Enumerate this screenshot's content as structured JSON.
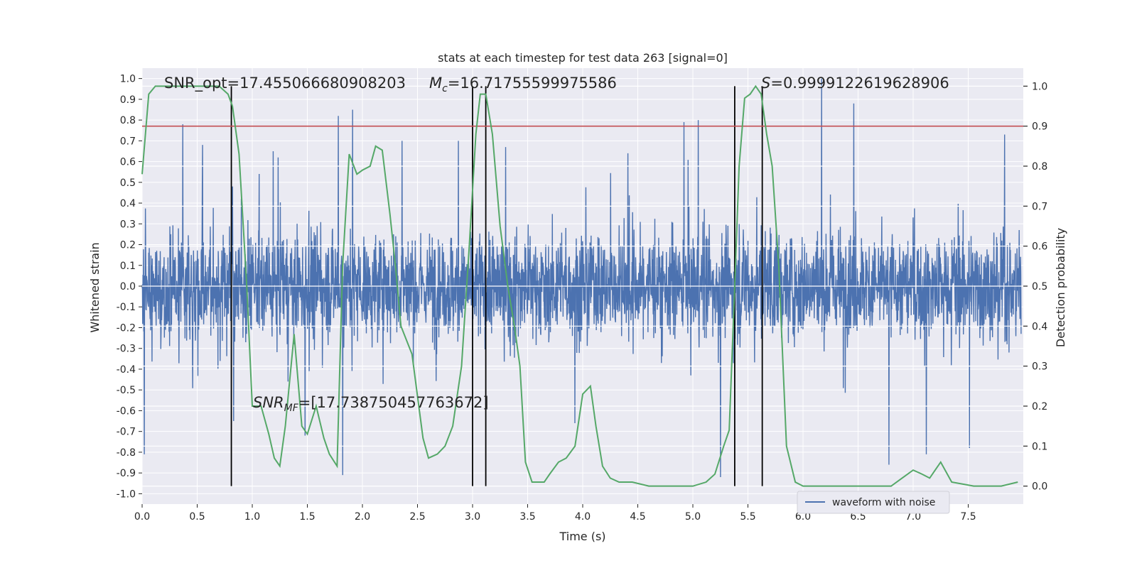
{
  "chart_data": {
    "type": "line",
    "title": "stats at each timestep for test data 263 [signal=0]",
    "xlabel": "Time (s)",
    "ylabel": "Whitened strain",
    "y2label": "Detection probability",
    "xlim": [
      0.0,
      8.0
    ],
    "ylim": [
      -1.05,
      1.05
    ],
    "y2lim": [
      -0.045,
      1.045
    ],
    "x_ticks": [
      "0.0",
      "0.5",
      "1.0",
      "1.5",
      "2.0",
      "2.5",
      "3.0",
      "3.5",
      "4.0",
      "4.5",
      "5.0",
      "5.5",
      "6.0",
      "6.5",
      "7.0",
      "7.5"
    ],
    "y_ticks": [
      "1.0",
      "0.9",
      "0.8",
      "0.7",
      "0.6",
      "0.5",
      "0.4",
      "0.3",
      "0.2",
      "0.1",
      "0.0",
      "-0.1",
      "-0.2",
      "-0.3",
      "-0.4",
      "-0.5",
      "-0.6",
      "-0.7",
      "-0.8",
      "-0.9",
      "-1.0"
    ],
    "y2_ticks": [
      "1.0",
      "0.9",
      "0.8",
      "0.7",
      "0.6",
      "0.5",
      "0.4",
      "0.3",
      "0.2",
      "0.1",
      "0.0"
    ],
    "grid": true,
    "legend": {
      "placement": "lower-right",
      "entries": [
        {
          "name": "waveform with noise",
          "color": "#4c72b0"
        }
      ]
    },
    "annotations": {
      "snr_opt": "SNR_opt=17.455066680908203",
      "mc_symbol": "M",
      "mc_sub": "c",
      "mc_value": "=16.71755599975586",
      "s_symbol": "S",
      "s_value": "=0.9999122619628906",
      "snrmf_symbol": "SNR",
      "snrmf_sub": "MF",
      "snrmf_value": "=[17.738750457763672]"
    },
    "threshold_line": {
      "axis": "y2",
      "value": 0.9,
      "color": "#c44e52"
    },
    "vertical_lines_s": [
      0.81,
      3.0,
      3.12,
      5.38,
      5.63
    ],
    "series": [
      {
        "name": "waveform with noise",
        "axis": "y",
        "color": "#4c72b0",
        "description_values": "dense noise, mostly within ±0.4, peaks near ±0.85, one peak at t≈6.17 reaching 1.0",
        "peaks": [
          {
            "x": 0.02,
            "y": -0.81
          },
          {
            "x": 0.37,
            "y": 0.78
          },
          {
            "x": 0.55,
            "y": 0.68
          },
          {
            "x": 0.82,
            "y": 0.48
          },
          {
            "x": 0.83,
            "y": -0.65
          },
          {
            "x": 1.19,
            "y": 0.65
          },
          {
            "x": 1.48,
            "y": -0.72
          },
          {
            "x": 1.78,
            "y": 0.82
          },
          {
            "x": 1.82,
            "y": -0.91
          },
          {
            "x": 1.91,
            "y": 0.85
          },
          {
            "x": 2.36,
            "y": 0.7
          },
          {
            "x": 2.87,
            "y": 0.7
          },
          {
            "x": 3.3,
            "y": 0.67
          },
          {
            "x": 3.93,
            "y": -0.66
          },
          {
            "x": 4.41,
            "y": 0.64
          },
          {
            "x": 4.92,
            "y": 0.79
          },
          {
            "x": 5.05,
            "y": 0.8
          },
          {
            "x": 5.25,
            "y": -0.92
          },
          {
            "x": 6.17,
            "y": 1.0
          },
          {
            "x": 6.46,
            "y": 0.88
          },
          {
            "x": 6.78,
            "y": -0.86
          },
          {
            "x": 7.12,
            "y": -0.81
          },
          {
            "x": 7.51,
            "y": -0.78
          },
          {
            "x": 7.83,
            "y": 0.73
          }
        ]
      },
      {
        "name": "",
        "axis": "y2",
        "color": "#55a868",
        "x": [
          0.0,
          0.06,
          0.12,
          0.2,
          0.3,
          0.4,
          0.5,
          0.6,
          0.7,
          0.78,
          0.82,
          0.88,
          0.95,
          1.0,
          1.08,
          1.15,
          1.2,
          1.25,
          1.3,
          1.38,
          1.45,
          1.5,
          1.58,
          1.65,
          1.7,
          1.77,
          1.82,
          1.88,
          1.95,
          2.0,
          2.07,
          2.12,
          2.18,
          2.25,
          2.3,
          2.35,
          2.45,
          2.55,
          2.6,
          2.68,
          2.75,
          2.82,
          2.9,
          2.97,
          3.03,
          3.07,
          3.12,
          3.18,
          3.25,
          3.32,
          3.38,
          3.43,
          3.48,
          3.54,
          3.6,
          3.65,
          3.7,
          3.78,
          3.85,
          3.93,
          4.0,
          4.07,
          4.12,
          4.18,
          4.25,
          4.33,
          4.45,
          4.6,
          4.75,
          4.88,
          5.0,
          5.12,
          5.2,
          5.28,
          5.33,
          5.38,
          5.42,
          5.47,
          5.52,
          5.57,
          5.62,
          5.67,
          5.72,
          5.78,
          5.85,
          5.93,
          6.0,
          6.2,
          6.5,
          6.8,
          7.0,
          7.08,
          7.15,
          7.2,
          7.25,
          7.35,
          7.55,
          7.8,
          7.95
        ],
        "y": [
          0.78,
          0.98,
          1.0,
          1.0,
          1.0,
          1.0,
          1.0,
          1.0,
          1.0,
          0.98,
          0.95,
          0.83,
          0.5,
          0.2,
          0.2,
          0.13,
          0.07,
          0.05,
          0.15,
          0.38,
          0.15,
          0.13,
          0.2,
          0.12,
          0.08,
          0.05,
          0.55,
          0.83,
          0.78,
          0.79,
          0.8,
          0.85,
          0.84,
          0.68,
          0.55,
          0.4,
          0.33,
          0.12,
          0.07,
          0.08,
          0.1,
          0.15,
          0.3,
          0.6,
          0.88,
          0.98,
          0.98,
          0.88,
          0.65,
          0.5,
          0.4,
          0.3,
          0.06,
          0.01,
          0.01,
          0.01,
          0.03,
          0.06,
          0.07,
          0.1,
          0.23,
          0.25,
          0.15,
          0.05,
          0.02,
          0.01,
          0.01,
          0.0,
          0.0,
          0.0,
          0.0,
          0.01,
          0.03,
          0.1,
          0.14,
          0.5,
          0.8,
          0.97,
          0.98,
          1.0,
          0.98,
          0.88,
          0.8,
          0.55,
          0.1,
          0.01,
          0.0,
          0.0,
          0.0,
          0.0,
          0.04,
          0.03,
          0.02,
          0.04,
          0.06,
          0.01,
          0.0,
          0.0,
          0.01
        ]
      }
    ]
  }
}
